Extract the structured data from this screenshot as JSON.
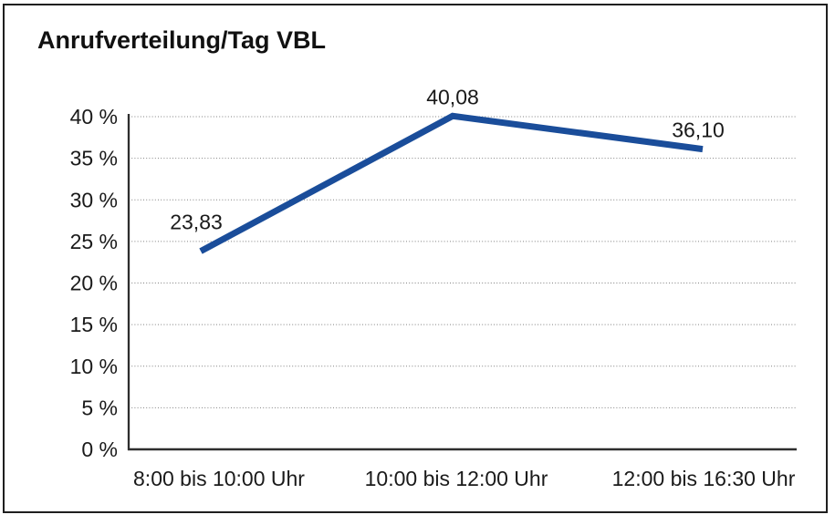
{
  "window": {
    "background": "#ffffff",
    "frame_border_color": "#1f1f1f"
  },
  "chart": {
    "title": "Anrufverteilung/Tag VBL"
  },
  "chart_data": {
    "type": "line",
    "title": "Anrufverteilung/Tag VBL",
    "categories": [
      "8:00 bis 10:00 Uhr",
      "10:00 bis 12:00 Uhr",
      "12:00 bis 16:30 Uhr"
    ],
    "values": [
      23.83,
      40.08,
      36.1
    ],
    "point_labels": [
      "23,83",
      "40,08",
      "36,10"
    ],
    "xlabel": "",
    "ylabel": "",
    "ylim": [
      0,
      40
    ],
    "ytick_step": 5,
    "ytick_values": [
      0,
      5,
      10,
      15,
      20,
      25,
      30,
      35,
      40
    ],
    "ytick_labels": [
      "0 %",
      "5 %",
      "10 %",
      "15 %",
      "20 %",
      "25 %",
      "30 %",
      "35 %",
      "40 %"
    ],
    "grid": "horizontal-dotted",
    "legend": "none",
    "line_color": "#1a4d9a",
    "axis_color": "#2e2e2e",
    "grid_color": "#808080",
    "text_color": "#1a1a1a"
  }
}
